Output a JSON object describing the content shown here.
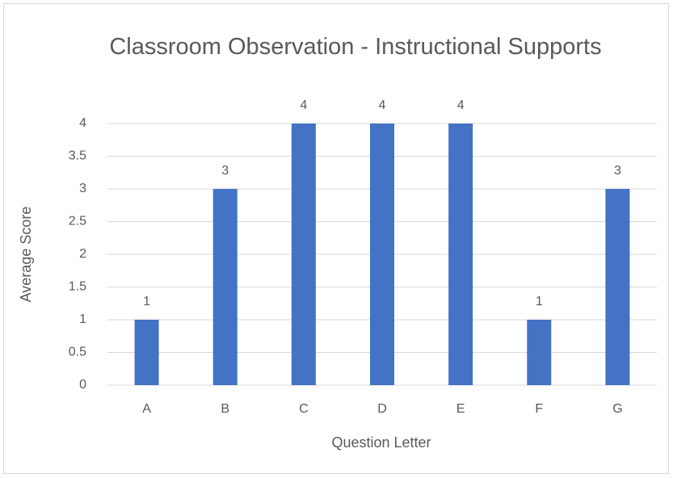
{
  "chart_data": {
    "type": "bar",
    "title": "Classroom Observation - Instructional Supports",
    "x_label": "Question Letter",
    "y_label": "Average Score",
    "categories": [
      "A",
      "B",
      "C",
      "D",
      "E",
      "F",
      "G"
    ],
    "values": [
      1,
      3,
      4,
      4,
      4,
      1,
      3
    ],
    "color": "#4472c4",
    "ylim": [
      0,
      4
    ],
    "yticks": [
      0,
      0.5,
      1,
      1.5,
      2,
      2.5,
      3,
      3.5,
      4
    ],
    "grid": true
  }
}
